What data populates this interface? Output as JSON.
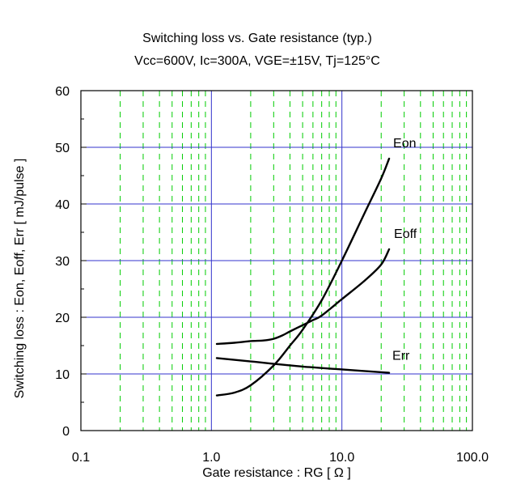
{
  "chart_data": {
    "type": "line",
    "title": "Switching loss vs. Gate resistance (typ.)",
    "subtitle": "Vcc=600V, Ic=300A, VGE=±15V, Tj=125°C",
    "xlabel": "Gate resistance : RG [ Ω ]",
    "ylabel": "Switching loss : Eon, Eoff, Err [ mJ/pulse ]",
    "x_scale": "log",
    "xlim": [
      0.1,
      100
    ],
    "ylim": [
      0,
      60
    ],
    "x_ticks": [
      {
        "value": 0.1,
        "label": "0.1"
      },
      {
        "value": 1,
        "label": "1.0"
      },
      {
        "value": 10,
        "label": "10.0"
      },
      {
        "value": 100,
        "label": "100.0"
      }
    ],
    "y_ticks": [
      0,
      10,
      20,
      30,
      40,
      50,
      60
    ],
    "grid": true,
    "major_grid_color": "#3333cc",
    "minor_grid_color": "#00cc00",
    "line_color": "#000000",
    "series": [
      {
        "name": "Eon",
        "x": [
          1.1,
          1.5,
          2.0,
          3.0,
          4.0,
          5.0,
          7.0,
          10.0,
          15.0,
          20.0,
          23.0
        ],
        "y": [
          6.2,
          6.7,
          8.0,
          11.5,
          15.0,
          17.8,
          23.0,
          30.0,
          38.5,
          44.5,
          48.0
        ]
      },
      {
        "name": "Eoff",
        "x": [
          1.1,
          1.5,
          2.0,
          2.5,
          3.0,
          3.5,
          4.0,
          5.0,
          6.0,
          7.0,
          10.0,
          15.0,
          20.0,
          23.0
        ],
        "y": [
          15.3,
          15.5,
          15.8,
          15.9,
          16.2,
          16.8,
          17.5,
          18.6,
          19.5,
          20.3,
          23.2,
          26.5,
          29.3,
          32.0
        ]
      },
      {
        "name": "Err",
        "x": [
          1.1,
          2.0,
          5.0,
          10.0,
          23.0
        ],
        "y": [
          12.8,
          12.2,
          11.3,
          10.8,
          10.2
        ]
      }
    ]
  }
}
